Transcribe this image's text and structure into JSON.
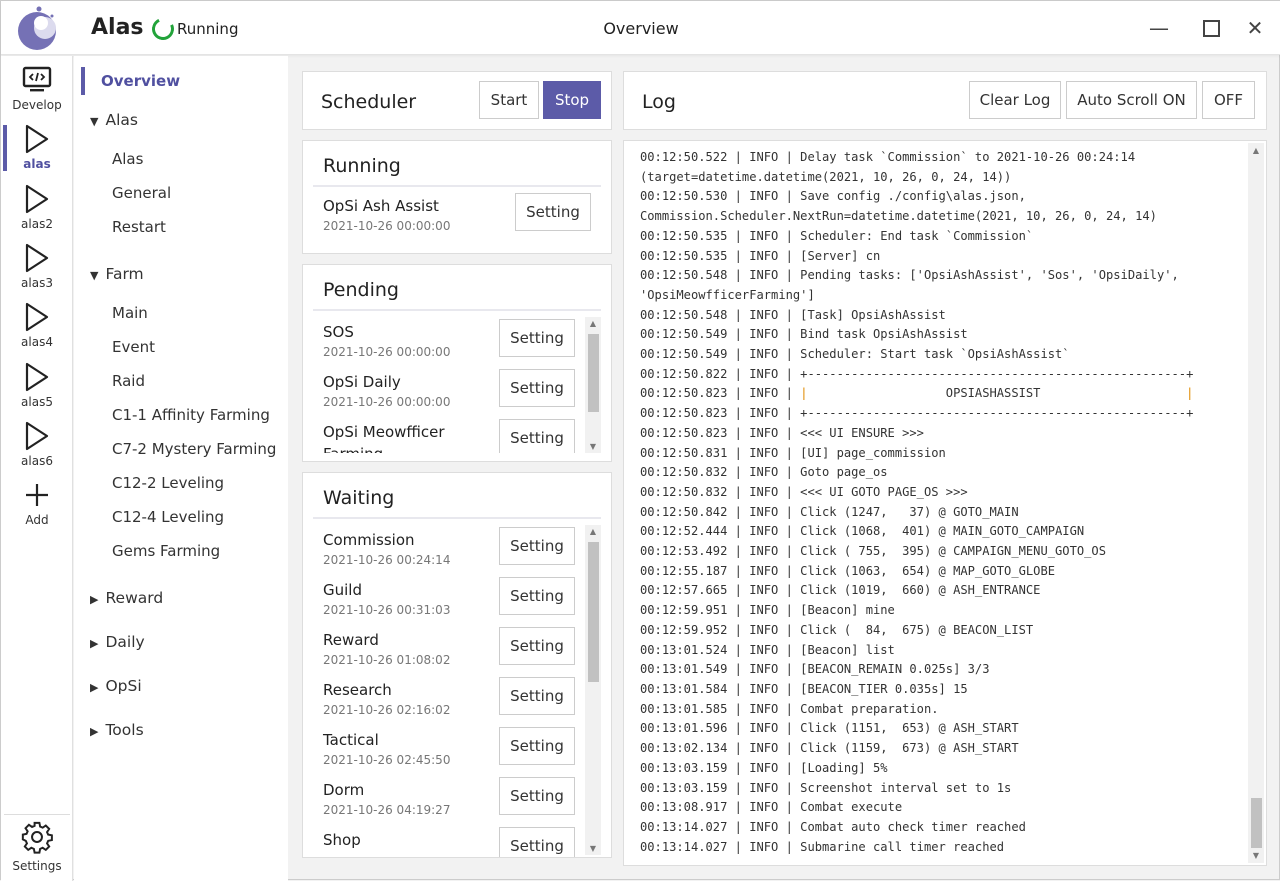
{
  "header": {
    "app_name": "Alas",
    "status": "Running",
    "page_title": "Overview",
    "status_color": "#22a33a",
    "accent": "#5c5ba8"
  },
  "iconbar": [
    {
      "label": "Develop",
      "icon": "code-monitor-icon"
    },
    {
      "label": "alas",
      "icon": "play-icon",
      "active": true
    },
    {
      "label": "alas2",
      "icon": "play-icon"
    },
    {
      "label": "alas3",
      "icon": "play-icon"
    },
    {
      "label": "alas4",
      "icon": "play-icon"
    },
    {
      "label": "alas5",
      "icon": "play-icon"
    },
    {
      "label": "alas6",
      "icon": "play-icon"
    },
    {
      "label": "Add",
      "icon": "plus-icon"
    }
  ],
  "settings_label": "Settings",
  "nav": {
    "overview": "Overview",
    "groups": [
      {
        "label": "Alas",
        "expanded": true,
        "items": [
          "Alas",
          "General",
          "Restart"
        ]
      },
      {
        "label": "Farm",
        "expanded": true,
        "items": [
          "Main",
          "Event",
          "Raid",
          "C1-1 Affinity Farming",
          "C7-2 Mystery Farming",
          "C12-2 Leveling",
          "C12-4 Leveling",
          "Gems Farming"
        ]
      },
      {
        "label": "Reward",
        "expanded": false
      },
      {
        "label": "Daily",
        "expanded": false
      },
      {
        "label": "OpSi",
        "expanded": false
      },
      {
        "label": "Tools",
        "expanded": false
      }
    ]
  },
  "scheduler": {
    "title": "Scheduler",
    "start": "Start",
    "stop": "Stop"
  },
  "running": {
    "title": "Running",
    "tasks": [
      {
        "name": "OpSi Ash Assist",
        "time": "2021-10-26 00:00:00"
      }
    ]
  },
  "pending": {
    "title": "Pending",
    "tasks": [
      {
        "name": "SOS",
        "time": "2021-10-26 00:00:00"
      },
      {
        "name": "OpSi Daily",
        "time": "2021-10-26 00:00:00"
      },
      {
        "name": "OpSi Meowfficer Farming",
        "time": ""
      }
    ]
  },
  "waiting": {
    "title": "Waiting",
    "tasks": [
      {
        "name": "Commission",
        "time": "2021-10-26 00:24:14"
      },
      {
        "name": "Guild",
        "time": "2021-10-26 00:31:03"
      },
      {
        "name": "Reward",
        "time": "2021-10-26 01:08:02"
      },
      {
        "name": "Research",
        "time": "2021-10-26 02:16:02"
      },
      {
        "name": "Tactical",
        "time": "2021-10-26 02:45:50"
      },
      {
        "name": "Dorm",
        "time": "2021-10-26 04:19:27"
      },
      {
        "name": "Shop",
        "time": ""
      }
    ]
  },
  "setting_label": "Setting",
  "log": {
    "title": "Log",
    "clear": "Clear Log",
    "auto_scroll": "Auto Scroll ON",
    "off": "OFF",
    "lines": [
      "00:12:50.522 | INFO | Delay task `Commission` to 2021-10-26 00:24:14",
      "(target=datetime.datetime(2021, 10, 26, 0, 24, 14))",
      "00:12:50.530 | INFO | Save config ./config\\alas.json,",
      "Commission.Scheduler.NextRun=datetime.datetime(2021, 10, 26, 0, 24, 14)",
      "00:12:50.535 | INFO | Scheduler: End task `Commission`",
      "00:12:50.535 | INFO | [Server] cn",
      "00:12:50.548 | INFO | Pending tasks: ['OpsiAshAssist', 'Sos', 'OpsiDaily',",
      "'OpsiMeowfficerFarming']",
      "00:12:50.548 | INFO | [Task] OpsiAshAssist",
      "00:12:50.549 | INFO | Bind task OpsiAshAssist",
      "00:12:50.549 | INFO | Scheduler: Start task `OpsiAshAssist`",
      "00:12:50.822 | INFO | +----------------------------------------------------+",
      "00:12:50.823 | INFO | |                   OPSIASHASSIST                    |",
      "00:12:50.823 | INFO | +----------------------------------------------------+",
      "00:12:50.823 | INFO | <<< UI ENSURE >>>",
      "00:12:50.831 | INFO | [UI] page_commission",
      "00:12:50.832 | INFO | Goto page_os",
      "00:12:50.832 | INFO | <<< UI GOTO PAGE_OS >>>",
      "00:12:50.842 | INFO | Click (1247,   37) @ GOTO_MAIN",
      "00:12:52.444 | INFO | Click (1068,  401) @ MAIN_GOTO_CAMPAIGN",
      "00:12:53.492 | INFO | Click ( 755,  395) @ CAMPAIGN_MENU_GOTO_OS",
      "00:12:55.187 | INFO | Click (1063,  654) @ MAP_GOTO_GLOBE",
      "00:12:57.665 | INFO | Click (1019,  660) @ ASH_ENTRANCE",
      "00:12:59.951 | INFO | [Beacon] mine",
      "00:12:59.952 | INFO | Click (  84,  675) @ BEACON_LIST",
      "00:13:01.524 | INFO | [Beacon] list",
      "00:13:01.549 | INFO | [BEACON_REMAIN 0.025s] 3/3",
      "00:13:01.584 | INFO | [BEACON_TIER 0.035s] 15",
      "00:13:01.585 | INFO | Combat preparation.",
      "00:13:01.596 | INFO | Click (1151,  653) @ ASH_START",
      "00:13:02.134 | INFO | Click (1159,  673) @ ASH_START",
      "00:13:03.159 | INFO | [Loading] 5%",
      "00:13:03.159 | INFO | Screenshot interval set to 1s",
      "00:13:08.917 | INFO | Combat execute",
      "00:13:14.027 | INFO | Combat auto check timer reached",
      "00:13:14.027 | INFO | Submarine call timer reached"
    ]
  }
}
